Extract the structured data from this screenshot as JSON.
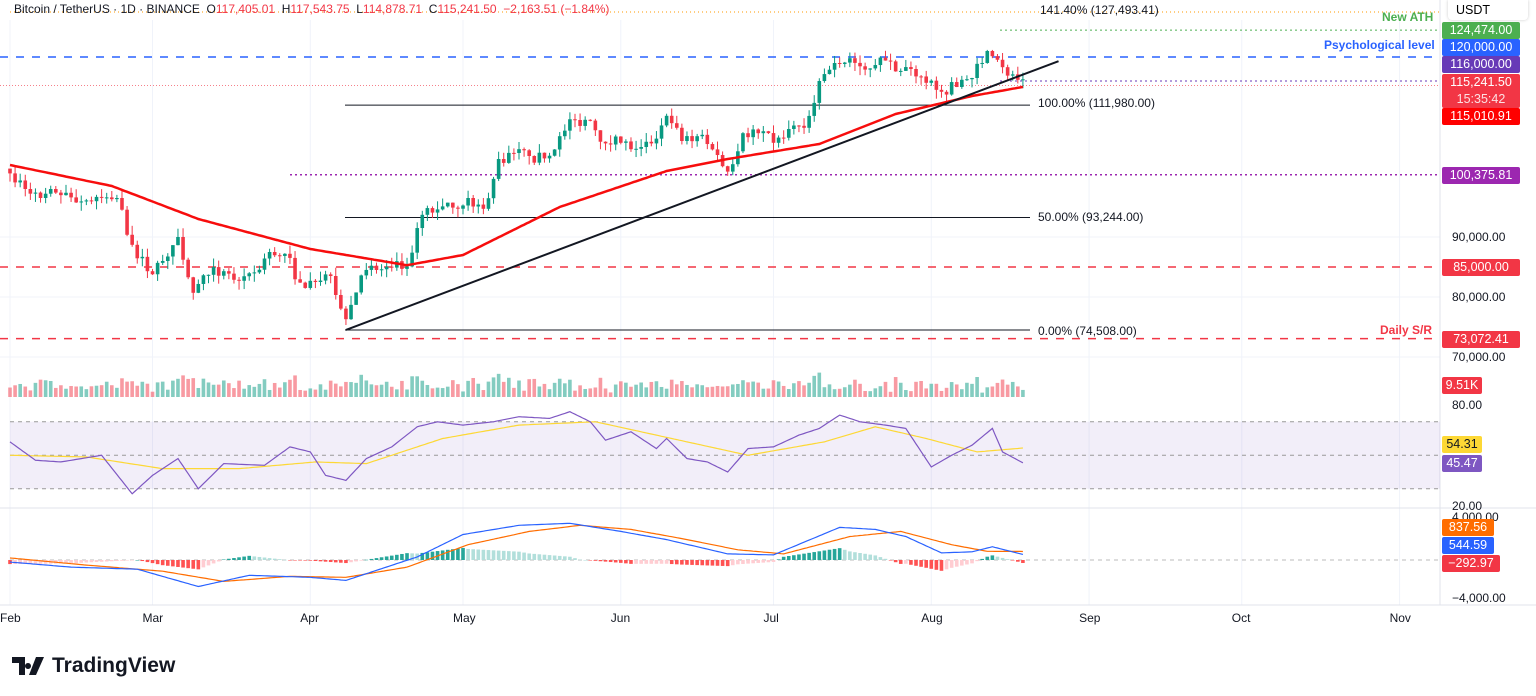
{
  "header": {
    "symbol": "Bitcoin / TetherUS",
    "interval": "1D",
    "exchange": "BINANCE",
    "open_label": "O",
    "open": "117,405.01",
    "high_label": "H",
    "high": "117,543.75",
    "low_label": "L",
    "low": "114,878.71",
    "close_label": "C",
    "close": "115,241.50",
    "change": "−2,163.51 (−1.84%)"
  },
  "currency": "USDT",
  "brand": "TradingView",
  "colors": {
    "up": "#089981",
    "down": "#f23645",
    "ema": "#f70d0d",
    "blue": "#2962ff",
    "purple": "#673ab7",
    "green": "#4caf50",
    "orange": "#ff6d00",
    "rsi": "#7e57c2",
    "rsi_ma": "#fdd835"
  },
  "annotations": {
    "new_ath": "New ATH",
    "psych": "Psychological level",
    "daily_sr": "Daily S/R",
    "fib_1414": "141.40% (127,493.41)",
    "fib_100": "100.00% (111,980.00)",
    "fib_50": "50.00% (93,244.00)",
    "fib_0": "0.00% (74,508.00)"
  },
  "price_tags": [
    {
      "text": "124,474.00",
      "value": 124474,
      "color": "#4caf50"
    },
    {
      "text": "120,000.00",
      "value": 120000,
      "color": "#2962ff"
    },
    {
      "text": "116,000.00",
      "value": 116000,
      "color": "#673ab7"
    },
    {
      "text": "115,241.50",
      "value": 115241.5,
      "color": "#f23645",
      "sub": "15:35:42"
    },
    {
      "text": "115,010.91",
      "value": 115010.91,
      "color": "#ff0000"
    },
    {
      "text": "100,375.81",
      "value": 100375.81,
      "color": "#9c27b0"
    },
    {
      "text": "85,000.00",
      "value": 85000,
      "color": "#f23645"
    },
    {
      "text": "73,072.41",
      "value": 73072.41,
      "color": "#f23645"
    }
  ],
  "volume_tag": "9.51K",
  "rsi_tags": {
    "ma": "54.31",
    "rsi": "45.47"
  },
  "macd_tags": {
    "signal": "837.56",
    "macd": "544.59",
    "hist": "−292.97"
  },
  "chart_data": [
    {
      "type": "candlestick",
      "title": "Bitcoin / TetherUS 1D",
      "x_unit": "days since Feb 1 2025",
      "y_ticks": [
        "90,000.00",
        "80,000.00",
        "70,000.00"
      ],
      "y_tick_values": [
        90000,
        80000,
        70000
      ],
      "x_ticks": [
        "Feb",
        "Mar",
        "Apr",
        "May",
        "Jun",
        "Jul",
        "Aug",
        "Sep",
        "Oct",
        "Nov"
      ],
      "x_tick_days": [
        0,
        28,
        59,
        89,
        120,
        150,
        181,
        212,
        242,
        273
      ],
      "closes": [
        [
          0,
          100600
        ],
        [
          3,
          98000
        ],
        [
          6,
          96500
        ],
        [
          9,
          97400
        ],
        [
          12,
          96600
        ],
        [
          15,
          96100
        ],
        [
          18,
          96600
        ],
        [
          21,
          96500
        ],
        [
          24,
          88700
        ],
        [
          27,
          84300
        ],
        [
          30,
          86000
        ],
        [
          33,
          90000
        ],
        [
          36,
          80700
        ],
        [
          39,
          83700
        ],
        [
          42,
          84300
        ],
        [
          45,
          82700
        ],
        [
          48,
          84100
        ],
        [
          51,
          87500
        ],
        [
          54,
          87200
        ],
        [
          57,
          82400
        ],
        [
          60,
          82500
        ],
        [
          63,
          83500
        ],
        [
          66,
          76300
        ],
        [
          69,
          83600
        ],
        [
          72,
          84500
        ],
        [
          75,
          84900
        ],
        [
          78,
          85100
        ],
        [
          81,
          93700
        ],
        [
          84,
          94600
        ],
        [
          87,
          94900
        ],
        [
          90,
          96500
        ],
        [
          93,
          94700
        ],
        [
          96,
          103000
        ],
        [
          99,
          104000
        ],
        [
          102,
          103500
        ],
        [
          105,
          103100
        ],
        [
          108,
          106800
        ],
        [
          111,
          109500
        ],
        [
          114,
          109400
        ],
        [
          117,
          105600
        ],
        [
          120,
          105700
        ],
        [
          123,
          104700
        ],
        [
          126,
          105600
        ],
        [
          129,
          110200
        ],
        [
          132,
          106000
        ],
        [
          135,
          106800
        ],
        [
          138,
          104600
        ],
        [
          141,
          100900
        ],
        [
          144,
          107300
        ],
        [
          147,
          107300
        ],
        [
          150,
          105700
        ],
        [
          153,
          108000
        ],
        [
          156,
          108200
        ],
        [
          159,
          116000
        ],
        [
          162,
          119000
        ],
        [
          165,
          119800
        ],
        [
          168,
          117900
        ],
        [
          171,
          119900
        ],
        [
          174,
          117600
        ],
        [
          177,
          118000
        ],
        [
          180,
          115700
        ],
        [
          183,
          114200
        ],
        [
          186,
          115000
        ],
        [
          189,
          116500
        ],
        [
          192,
          121000
        ],
        [
          195,
          118300
        ],
        [
          198,
          116200
        ],
        [
          199,
          115241.5
        ]
      ],
      "ema50": [
        [
          0,
          102000
        ],
        [
          20,
          98500
        ],
        [
          37,
          93000
        ],
        [
          59,
          88000
        ],
        [
          78,
          85300
        ],
        [
          89,
          87000
        ],
        [
          108,
          95000
        ],
        [
          129,
          101000
        ],
        [
          141,
          103000
        ],
        [
          159,
          105500
        ],
        [
          174,
          110500
        ],
        [
          189,
          113500
        ],
        [
          199,
          115010.91
        ]
      ],
      "trendline": [
        [
          66,
          74508
        ],
        [
          206,
          119300
        ]
      ],
      "levels": {
        "fib_0": 74508,
        "fib_50": 93244,
        "fib_100": 111980,
        "fib_1414": 127493.41,
        "ath": 124474,
        "psych": 120000,
        "purple": 116000,
        "sr_100k": 100375.81,
        "sr_85k": 85000,
        "sr_73k": 73072.41
      }
    },
    {
      "type": "line",
      "title": "RSI",
      "y_ticks": [
        "80.00",
        "20.00"
      ],
      "y_tick_values": [
        80,
        20
      ],
      "band": [
        30,
        70
      ],
      "rsi": [
        [
          0,
          58
        ],
        [
          5,
          47
        ],
        [
          10,
          46
        ],
        [
          18,
          50
        ],
        [
          24,
          27
        ],
        [
          28,
          38
        ],
        [
          33,
          48
        ],
        [
          37,
          30
        ],
        [
          42,
          45
        ],
        [
          50,
          44
        ],
        [
          55,
          55
        ],
        [
          59,
          52
        ],
        [
          62,
          38
        ],
        [
          66,
          35
        ],
        [
          70,
          48
        ],
        [
          75,
          55
        ],
        [
          80,
          67
        ],
        [
          84,
          70
        ],
        [
          89,
          68
        ],
        [
          95,
          70
        ],
        [
          100,
          73
        ],
        [
          106,
          72
        ],
        [
          110,
          76
        ],
        [
          114,
          70
        ],
        [
          117,
          59
        ],
        [
          122,
          64
        ],
        [
          127,
          54
        ],
        [
          129,
          60
        ],
        [
          133,
          48
        ],
        [
          137,
          46
        ],
        [
          141,
          40
        ],
        [
          145,
          54
        ],
        [
          150,
          55
        ],
        [
          155,
          62
        ],
        [
          159,
          66
        ],
        [
          163,
          74
        ],
        [
          167,
          70
        ],
        [
          172,
          68
        ],
        [
          176,
          66
        ],
        [
          181,
          43
        ],
        [
          185,
          50
        ],
        [
          189,
          56
        ],
        [
          193,
          66
        ],
        [
          195,
          52
        ],
        [
          199,
          45.47
        ]
      ],
      "rsi_ma": [
        [
          0,
          50
        ],
        [
          15,
          49
        ],
        [
          30,
          42
        ],
        [
          45,
          42
        ],
        [
          60,
          46
        ],
        [
          70,
          45
        ],
        [
          85,
          60
        ],
        [
          100,
          68
        ],
        [
          115,
          70
        ],
        [
          130,
          60
        ],
        [
          145,
          50
        ],
        [
          160,
          58
        ],
        [
          170,
          67
        ],
        [
          180,
          60
        ],
        [
          190,
          52
        ],
        [
          199,
          54.31
        ]
      ]
    },
    {
      "type": "macd",
      "title": "MACD",
      "y_ticks": [
        "4,000.00",
        "−4,000.00"
      ],
      "y_tick_values": [
        4000,
        -4000
      ],
      "macd": [
        [
          0,
          -200
        ],
        [
          12,
          -700
        ],
        [
          25,
          -900
        ],
        [
          37,
          -2600
        ],
        [
          47,
          -1500
        ],
        [
          59,
          -1700
        ],
        [
          66,
          -2000
        ],
        [
          80,
          300
        ],
        [
          89,
          2500
        ],
        [
          100,
          3400
        ],
        [
          110,
          3600
        ],
        [
          120,
          2800
        ],
        [
          129,
          2000
        ],
        [
          141,
          600
        ],
        [
          150,
          500
        ],
        [
          163,
          3200
        ],
        [
          170,
          3000
        ],
        [
          176,
          2300
        ],
        [
          183,
          700
        ],
        [
          189,
          800
        ],
        [
          193,
          1300
        ],
        [
          199,
          544.59
        ]
      ],
      "signal": [
        [
          0,
          200
        ],
        [
          15,
          -500
        ],
        [
          30,
          -1100
        ],
        [
          42,
          -2100
        ],
        [
          55,
          -1600
        ],
        [
          66,
          -1700
        ],
        [
          78,
          -700
        ],
        [
          90,
          1500
        ],
        [
          102,
          2800
        ],
        [
          112,
          3400
        ],
        [
          122,
          3000
        ],
        [
          132,
          2100
        ],
        [
          143,
          1000
        ],
        [
          152,
          600
        ],
        [
          165,
          2300
        ],
        [
          175,
          2800
        ],
        [
          185,
          1500
        ],
        [
          192,
          850
        ],
        [
          199,
          837.56
        ]
      ]
    }
  ]
}
